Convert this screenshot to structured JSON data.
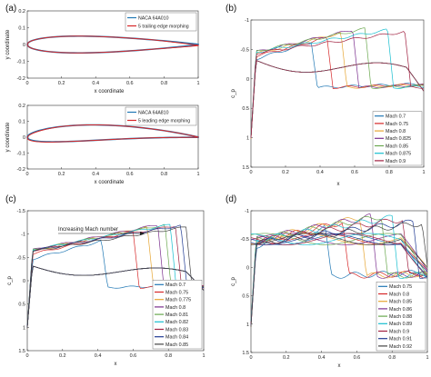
{
  "chart_data": [
    {
      "panel": "(a)",
      "type": "line",
      "xlabel": "x coordinate",
      "ylabel": "y coordinate",
      "xlim": [
        0,
        1
      ],
      "ylim": [
        -0.2,
        0.2
      ],
      "xticks": [
        "0",
        "0.2",
        "0.4",
        "0.6",
        "0.8",
        "1"
      ],
      "yticks": [
        "0.2",
        "0.1",
        "0",
        "-0.1",
        "-0.2"
      ],
      "legend": [
        "NACA 64A010",
        "5 trailing edge morphing"
      ],
      "series": [
        {
          "name": "NACA 64A010",
          "color": "#1f77b4",
          "thickness": 0.1,
          "camber": 0,
          "x": [
            0,
            0.1,
            0.2,
            0.3,
            0.4,
            0.5,
            0.6,
            0.7,
            0.8,
            0.9,
            1.0
          ],
          "y_upper": [
            0,
            0.04,
            0.047,
            0.05,
            0.049,
            0.046,
            0.04,
            0.032,
            0.022,
            0.012,
            0.002
          ]
        },
        {
          "name": "5 trailing edge morphing",
          "color": "#d62728",
          "thickness": 0.1,
          "morph": "trailing",
          "deflection_deg": 5,
          "x": [
            0,
            0.1,
            0.2,
            0.3,
            0.4,
            0.5,
            0.6,
            0.7,
            0.8,
            0.9,
            1.0
          ],
          "y_upper": [
            0,
            0.04,
            0.047,
            0.05,
            0.049,
            0.046,
            0.04,
            0.032,
            0.022,
            0.012,
            0.002
          ]
        }
      ]
    },
    {
      "panel": "",
      "type": "line",
      "xlabel": "x coordinate",
      "ylabel": "y coordinate",
      "xlim": [
        0,
        1
      ],
      "ylim": [
        -0.2,
        0.2
      ],
      "xticks": [
        "0",
        "0.2",
        "0.4",
        "0.6",
        "0.8",
        "1"
      ],
      "yticks": [
        "0.2",
        "0.1",
        "0",
        "-0.1",
        "-0.2"
      ],
      "legend": [
        "NACA 64A810",
        "5 leading edge morphing"
      ],
      "series": [
        {
          "name": "NACA 64A810",
          "color": "#1f77b4",
          "thickness": 0.1,
          "camber": 0.03
        },
        {
          "name": "5 leading edge morphing",
          "color": "#d62728",
          "thickness": 0.1,
          "camber": 0.03,
          "morph": "leading",
          "deflection_deg": 5
        }
      ]
    },
    {
      "panel": "(b)",
      "type": "line",
      "xlabel": "x",
      "ylabel": "c_p",
      "xlim": [
        0,
        1
      ],
      "ylim": [
        1.5,
        -1.0
      ],
      "y_reversed": true,
      "xticks": [
        "0",
        "0.2",
        "0.4",
        "0.6",
        "0.8",
        "1"
      ],
      "yticks": [
        "-1",
        "-0.5",
        "0",
        "0.5",
        "1",
        "1.5"
      ],
      "legend_position": "bottom-right",
      "series": [
        {
          "name": "Mach 0.7",
          "color": "#1f77b4",
          "shock_x": 0.35,
          "peak_cp": -0.62
        },
        {
          "name": "Mach 0.75",
          "color": "#d62728",
          "shock_x": 0.44,
          "peak_cp": -0.7
        },
        {
          "name": "Mach 0.8",
          "color": "#e6a532",
          "shock_x": 0.52,
          "peak_cp": -0.78
        },
        {
          "name": "Mach 0.825",
          "color": "#7b2f8e",
          "shock_x": 0.59,
          "peak_cp": -0.83
        },
        {
          "name": "Mach 0.85",
          "color": "#6aa84f",
          "shock_x": 0.66,
          "peak_cp": -0.85
        },
        {
          "name": "Mach 0.875",
          "color": "#17becf",
          "shock_x": 0.79,
          "peak_cp": -0.83
        },
        {
          "name": "Mach 0.9",
          "color": "#a02040",
          "shock_x": 0.89,
          "peak_cp": -0.8
        }
      ]
    },
    {
      "panel": "(c)",
      "type": "line",
      "xlabel": "x",
      "ylabel": "c_p",
      "xlim": [
        0,
        1
      ],
      "ylim": [
        1.5,
        -1.5
      ],
      "y_reversed": true,
      "xticks": [
        "0",
        "0.2",
        "0.4",
        "0.6",
        "0.8",
        "1"
      ],
      "yticks": [
        "-1.5",
        "-1",
        "-0.5",
        "0",
        "0.5",
        "1",
        "1.5"
      ],
      "annotation": "Increasing Mach number",
      "legend_position": "bottom-right",
      "series": [
        {
          "name": "Mach 0.7",
          "color": "#1f77b4",
          "shock_x": 0.42,
          "peak_cp": -0.85
        },
        {
          "name": "Mach 0.75",
          "color": "#d62728",
          "shock_x": 0.6,
          "peak_cp": -1.05
        },
        {
          "name": "Mach 0.775",
          "color": "#e6a532",
          "shock_x": 0.68,
          "peak_cp": -1.15
        },
        {
          "name": "Mach 0.8",
          "color": "#7b2f8e",
          "shock_x": 0.74,
          "peak_cp": -1.2
        },
        {
          "name": "Mach 0.81",
          "color": "#6aa84f",
          "shock_x": 0.78,
          "peak_cp": -1.2
        },
        {
          "name": "Mach 0.82",
          "color": "#17becf",
          "shock_x": 0.81,
          "peak_cp": -1.2
        },
        {
          "name": "Mach 0.83",
          "color": "#a02040",
          "shock_x": 0.84,
          "peak_cp": -1.18
        },
        {
          "name": "Mach 0.84",
          "color": "#1f3a93",
          "shock_x": 0.87,
          "peak_cp": -1.18
        },
        {
          "name": "Mach 0.85",
          "color": "#444444",
          "shock_x": 0.9,
          "peak_cp": -1.15
        }
      ]
    },
    {
      "panel": "(d)",
      "type": "line",
      "xlabel": "x",
      "ylabel": "c_p",
      "xlim": [
        0,
        1
      ],
      "ylim": [
        1.5,
        -1.0
      ],
      "y_reversed": true,
      "xticks": [
        "0",
        "0.2",
        "0.4",
        "0.6",
        "0.8",
        "1"
      ],
      "yticks": [
        "-1",
        "-0.5",
        "0",
        "0.5",
        "1",
        "1.5"
      ],
      "legend_position": "bottom-right",
      "series": [
        {
          "name": "Mach 0.75",
          "color": "#1f77b4",
          "shock_x": 0.42,
          "peak_cp": -0.7
        },
        {
          "name": "Mach 0.8",
          "color": "#d62728",
          "shock_x": 0.52,
          "peak_cp": -0.8
        },
        {
          "name": "Mach 0.85",
          "color": "#e6a532",
          "shock_x": 0.62,
          "peak_cp": -0.88
        },
        {
          "name": "Mach 0.86",
          "color": "#7b2f8e",
          "shock_x": 0.68,
          "peak_cp": -0.9
        },
        {
          "name": "Mach 0.88",
          "color": "#6aa84f",
          "shock_x": 0.74,
          "peak_cp": -0.9
        },
        {
          "name": "Mach 0.89",
          "color": "#17becf",
          "shock_x": 0.8,
          "peak_cp": -0.88
        },
        {
          "name": "Mach 0.9",
          "color": "#a02040",
          "shock_x": 0.86,
          "peak_cp": -0.85
        },
        {
          "name": "Mach 0.91",
          "color": "#1f3a93",
          "shock_x": 0.92,
          "peak_cp": -0.8
        },
        {
          "name": "Mach 0.92",
          "color": "#444444",
          "shock_x": 0.97,
          "peak_cp": -0.78
        }
      ]
    }
  ]
}
